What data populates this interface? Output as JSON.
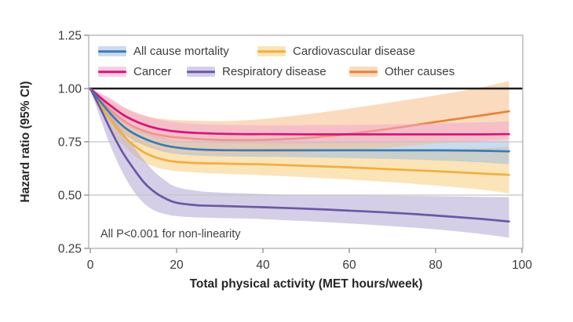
{
  "chart_data": {
    "type": "line",
    "title": "",
    "xlabel": "Total physical activity (MET hours/week)",
    "ylabel": "Hazard ratio (95% CI)",
    "xlim": [
      0,
      100
    ],
    "ylim": [
      0.25,
      1.25
    ],
    "x_tick_values": [
      0,
      20,
      40,
      60,
      80,
      100
    ],
    "x_tick_labels": [
      "0",
      "20",
      "40",
      "60",
      "80",
      "100"
    ],
    "y_tick_values": [
      1.25,
      1.0,
      0.75,
      0.5,
      0.25
    ],
    "y_tick_labels": [
      "1.25",
      "1.00",
      "0.75",
      "0.50",
      "0.25"
    ],
    "grid_y": [
      0.75,
      0.5
    ],
    "reference_y": 1.0,
    "annotation": "All P<0.001 for non-linearity",
    "legend_position": "inside plot, top-left, two rows",
    "frame_color": "#b0b0b0",
    "grid_color": "#c4c4c4",
    "reference_line_color": "#1c1c1c",
    "x": [
      0,
      2.5,
      5,
      7.5,
      10,
      12.5,
      15,
      17.5,
      20,
      25,
      30,
      35,
      40,
      50,
      60,
      70,
      80,
      90,
      97
    ],
    "series": [
      {
        "name": "All cause  mortality",
        "color": "#3a7ab8",
        "band_color": "#9ebedf",
        "values": [
          1.0,
          0.935,
          0.875,
          0.825,
          0.79,
          0.765,
          0.746,
          0.732,
          0.723,
          0.714,
          0.711,
          0.71,
          0.71,
          0.71,
          0.71,
          0.71,
          0.71,
          0.708,
          0.705
        ],
        "ci_low": [
          1.0,
          0.905,
          0.84,
          0.79,
          0.757,
          0.733,
          0.715,
          0.701,
          0.693,
          0.685,
          0.682,
          0.68,
          0.679,
          0.677,
          0.674,
          0.669,
          0.663,
          0.654,
          0.645
        ],
        "ci_high": [
          1.0,
          0.96,
          0.905,
          0.86,
          0.826,
          0.8,
          0.78,
          0.766,
          0.754,
          0.748,
          0.747,
          0.747,
          0.747,
          0.748,
          0.749,
          0.751,
          0.753,
          0.754,
          0.755
        ]
      },
      {
        "name": "Cardiovascular disease",
        "color": "#f2ae3d",
        "band_color": "#f7cd7e",
        "values": [
          1.0,
          0.92,
          0.845,
          0.783,
          0.735,
          0.7,
          0.678,
          0.664,
          0.656,
          0.65,
          0.648,
          0.646,
          0.644,
          0.637,
          0.63,
          0.621,
          0.612,
          0.602,
          0.595
        ],
        "ci_low": [
          1.0,
          0.89,
          0.8,
          0.737,
          0.688,
          0.654,
          0.632,
          0.62,
          0.612,
          0.605,
          0.601,
          0.597,
          0.593,
          0.584,
          0.573,
          0.56,
          0.545,
          0.527,
          0.508
        ],
        "ci_high": [
          1.0,
          0.945,
          0.885,
          0.83,
          0.783,
          0.748,
          0.724,
          0.71,
          0.701,
          0.698,
          0.698,
          0.698,
          0.698,
          0.699,
          0.701,
          0.705,
          0.711,
          0.719,
          0.726
        ]
      },
      {
        "name": "Cancer",
        "color": "#d6147f",
        "band_color": "#f2a7cd",
        "values": [
          1.0,
          0.955,
          0.915,
          0.878,
          0.851,
          0.83,
          0.815,
          0.805,
          0.798,
          0.791,
          0.788,
          0.786,
          0.786,
          0.785,
          0.785,
          0.785,
          0.785,
          0.785,
          0.786
        ],
        "ci_low": [
          1.0,
          0.93,
          0.88,
          0.838,
          0.808,
          0.786,
          0.77,
          0.76,
          0.753,
          0.747,
          0.744,
          0.743,
          0.742,
          0.742,
          0.743,
          0.746,
          0.749,
          0.752,
          0.755
        ],
        "ci_high": [
          1.0,
          0.976,
          0.95,
          0.917,
          0.892,
          0.873,
          0.858,
          0.848,
          0.841,
          0.833,
          0.83,
          0.828,
          0.828,
          0.828,
          0.829,
          0.832,
          0.836,
          0.841,
          0.846
        ]
      },
      {
        "name": "Respiratory disease",
        "color": "#6a58a5",
        "band_color": "#b3a6d4",
        "values": [
          1.0,
          0.9,
          0.795,
          0.7,
          0.625,
          0.558,
          0.513,
          0.483,
          0.464,
          0.452,
          0.449,
          0.446,
          0.443,
          0.436,
          0.427,
          0.417,
          0.404,
          0.389,
          0.376
        ],
        "ci_low": [
          1.0,
          0.85,
          0.715,
          0.605,
          0.52,
          0.46,
          0.426,
          0.41,
          0.401,
          0.395,
          0.392,
          0.39,
          0.387,
          0.378,
          0.367,
          0.354,
          0.339,
          0.319,
          0.3
        ],
        "ci_high": [
          1.0,
          0.944,
          0.872,
          0.798,
          0.728,
          0.662,
          0.607,
          0.566,
          0.538,
          0.519,
          0.512,
          0.508,
          0.505,
          0.5,
          0.498,
          0.497,
          0.495,
          0.492,
          0.49
        ]
      },
      {
        "name": "Other causes",
        "color": "#e8823c",
        "band_color": "#f5bd88",
        "values": [
          1.0,
          0.945,
          0.893,
          0.852,
          0.822,
          0.801,
          0.786,
          0.777,
          0.771,
          0.763,
          0.759,
          0.758,
          0.759,
          0.768,
          0.787,
          0.813,
          0.843,
          0.872,
          0.893
        ],
        "ci_low": [
          1.0,
          0.915,
          0.846,
          0.795,
          0.758,
          0.733,
          0.716,
          0.706,
          0.7,
          0.694,
          0.692,
          0.692,
          0.693,
          0.699,
          0.71,
          0.724,
          0.741,
          0.754,
          0.763
        ],
        "ci_high": [
          1.0,
          0.973,
          0.94,
          0.912,
          0.889,
          0.873,
          0.862,
          0.856,
          0.852,
          0.848,
          0.847,
          0.85,
          0.857,
          0.879,
          0.906,
          0.936,
          0.968,
          1.003,
          1.035
        ]
      }
    ]
  }
}
